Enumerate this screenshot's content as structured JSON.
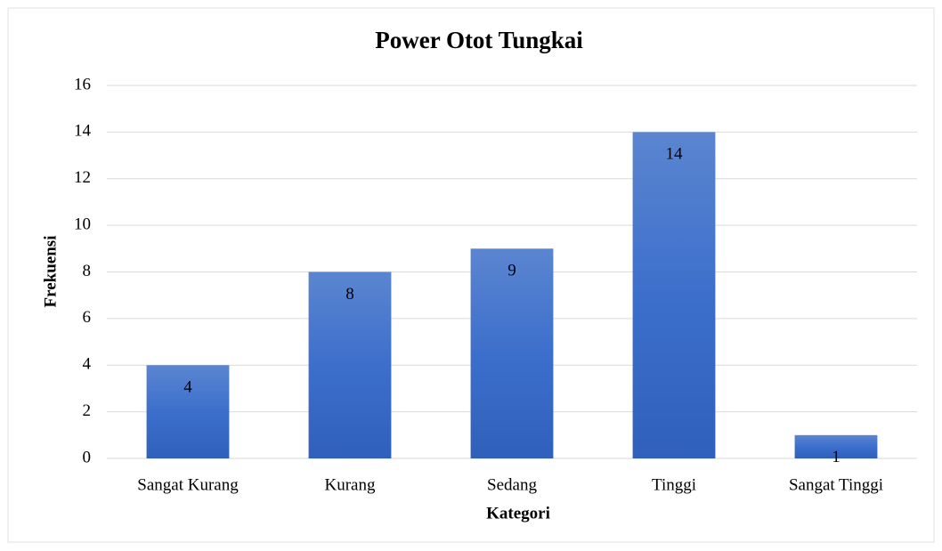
{
  "chart_data": {
    "type": "bar",
    "title": "Power Otot Tungkai",
    "x_label": "Kategori",
    "y_label": "Frekuensi",
    "categories": [
      "Sangat Kurang",
      "Kurang",
      "Sedang",
      "Tinggi",
      "Sangat Tinggi"
    ],
    "values": [
      4,
      8,
      9,
      14,
      1
    ],
    "color": "#4472c4",
    "ylim": [
      0,
      16
    ],
    "yticks": [
      0,
      2,
      4,
      6,
      8,
      10,
      12,
      14,
      16
    ],
    "grid": true
  }
}
